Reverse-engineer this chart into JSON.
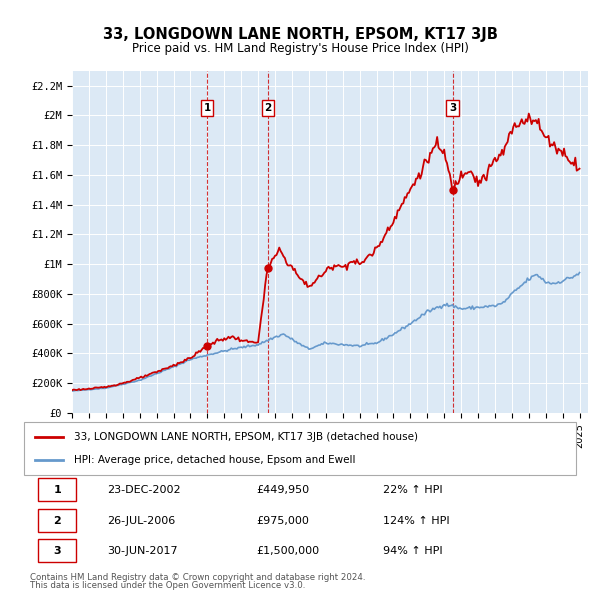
{
  "title": "33, LONGDOWN LANE NORTH, EPSOM, KT17 3JB",
  "subtitle": "Price paid vs. HM Land Registry's House Price Index (HPI)",
  "ylim": [
    0,
    2300000
  ],
  "yticks": [
    0,
    200000,
    400000,
    600000,
    800000,
    1000000,
    1200000,
    1400000,
    1600000,
    1800000,
    2000000,
    2200000
  ],
  "ytick_labels": [
    "£0",
    "£200K",
    "£400K",
    "£600K",
    "£800K",
    "£1M",
    "£1.2M",
    "£1.4M",
    "£1.6M",
    "£1.8M",
    "£2M",
    "£2.2M"
  ],
  "xlim_start": 1995.0,
  "xlim_end": 2025.5,
  "xtick_years": [
    1995,
    1996,
    1997,
    1998,
    1999,
    2000,
    2001,
    2002,
    2003,
    2004,
    2005,
    2006,
    2007,
    2008,
    2009,
    2010,
    2011,
    2012,
    2013,
    2014,
    2015,
    2016,
    2017,
    2018,
    2019,
    2020,
    2021,
    2022,
    2023,
    2024,
    2025
  ],
  "property_color": "#cc0000",
  "hpi_color": "#6699cc",
  "sale_marker_color": "#cc0000",
  "sale_vline_color": "#cc0000",
  "sale_marker_facecolor": "#cc0000",
  "sales": [
    {
      "num": 1,
      "year": 2002.98,
      "price": 449950,
      "date_str": "23-DEC-2002",
      "price_str": "£449,950",
      "pct_str": "22% ↑ HPI"
    },
    {
      "num": 2,
      "year": 2006.57,
      "price": 975000,
      "date_str": "26-JUL-2006",
      "price_str": "£975,000",
      "pct_str": "124% ↑ HPI"
    },
    {
      "num": 3,
      "year": 2017.5,
      "price": 1500000,
      "date_str": "30-JUN-2017",
      "price_str": "£1,500,000",
      "pct_str": "94% ↑ HPI"
    }
  ],
  "legend_property": "33, LONGDOWN LANE NORTH, EPSOM, KT17 3JB (detached house)",
  "legend_hpi": "HPI: Average price, detached house, Epsom and Ewell",
  "footer1": "Contains HM Land Registry data © Crown copyright and database right 2024.",
  "footer2": "This data is licensed under the Open Government Licence v3.0.",
  "bg_color": "#dce9f5",
  "plot_bg_color": "#dce9f5"
}
